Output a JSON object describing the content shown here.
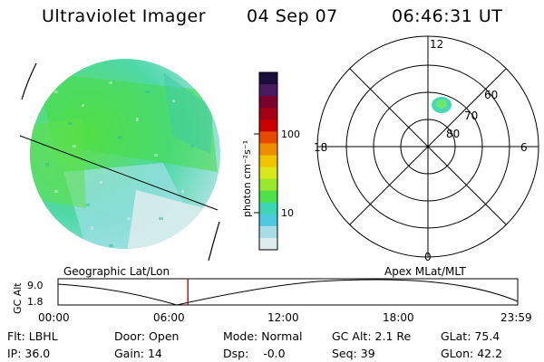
{
  "header": {
    "title": "Ultraviolet Imager",
    "date": "04 Sep 07",
    "time": "06:46:31 UT"
  },
  "colorbar": {
    "label": "photon cm⁻²s⁻¹",
    "tick_100": "100",
    "tick_10": "10",
    "colors": [
      "#1a0f3c",
      "#4b1a5e",
      "#7a0030",
      "#a30018",
      "#cc0000",
      "#e84a00",
      "#f08c00",
      "#f2c400",
      "#d8e81c",
      "#9ae82c",
      "#4de24c",
      "#3cd6b4",
      "#4ec8e0",
      "#a8dce6",
      "#dcecec"
    ]
  },
  "polar": {
    "labels": {
      "top": "12",
      "bottom": "0",
      "left": "18",
      "right": "6"
    },
    "lat_labels": [
      "60",
      "70",
      "80"
    ]
  },
  "timeline": {
    "left_label": "Geographic Lat/Lon",
    "right_label": "Apex MLat/MLT",
    "ylabel": "GC Alt",
    "y_ticks": [
      "9.0",
      "1.8"
    ],
    "x_ticks": [
      "00:00",
      "06:00",
      "12:00",
      "18:00",
      "23:59"
    ],
    "marker_time_hours": 6.775
  },
  "info": {
    "flt_label": "Flt:",
    "flt": "LBHL",
    "ip_label": "IP:",
    "ip": "36.0",
    "door_label": "Door:",
    "door": "Open",
    "gain_label": "Gain:",
    "gain": "14",
    "mode_label": "Mode:",
    "mode": "Normal",
    "dsp_label": "Dsp:",
    "dsp": "-0.0",
    "gcalt_label": "GC Alt:",
    "gcalt": "2.1 Re",
    "seq_label": "Seq:",
    "seq": "39",
    "glat_label": "GLat:",
    "glat": "75.4",
    "glon_label": "GLon:",
    "glon": "42.2"
  }
}
